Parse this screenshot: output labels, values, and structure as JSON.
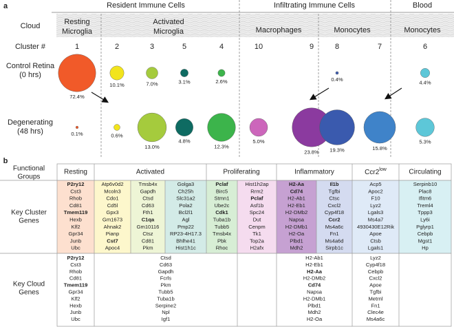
{
  "panel_a": {
    "label": "a",
    "groups": [
      "Resident Immune Cells",
      "Infiltrating Immune Cells",
      "Blood"
    ],
    "row_labels": {
      "cloud": "Cloud",
      "cluster": "Cluster #",
      "control": [
        "Control Retina",
        "(0 hrs)"
      ],
      "degenerating": [
        "Degenerating",
        "(48 hrs)"
      ]
    },
    "subgroups": [
      [
        "Resting",
        "Microglia"
      ],
      [
        "Activated",
        "Microglia"
      ],
      [
        "Macrophages"
      ],
      [
        "Monocytes"
      ],
      [
        "Monocytes"
      ]
    ],
    "clusters": [
      "1",
      "2",
      "3",
      "5",
      "4",
      "10",
      "9",
      "8",
      "7",
      "6"
    ],
    "colors": [
      "#f15a29",
      "#f2e41c",
      "#a5cb3d",
      "#0e6b62",
      "#3cb44b",
      "#cc66bb",
      "#8b3a9f",
      "#3a5aae",
      "#3f83c9",
      "#5dc7d8"
    ],
    "control": {
      "values": [
        72.4,
        10.1,
        7.0,
        3.1,
        2.6,
        null,
        null,
        0.4,
        null,
        4.4
      ],
      "value_labels": [
        "72.4%",
        "10.1%",
        "7.0%",
        "3.1%",
        "2.6%",
        null,
        null,
        "0.4%",
        null,
        "4.4%"
      ]
    },
    "degenerating": {
      "values": [
        0.1,
        0.6,
        13.0,
        4.8,
        12.3,
        5.0,
        23.8,
        19.3,
        15.8,
        5.3
      ],
      "value_labels": [
        "0.1%",
        "0.6%",
        "13.0%",
        "4.8%",
        "12.3%",
        "5.0%",
        "23.8%",
        "19.3%",
        "15.8%",
        "5.3%"
      ]
    }
  },
  "panel_b": {
    "label": "b",
    "row_labels": [
      [
        "Functional",
        "Groups"
      ],
      [
        "Key Cluster",
        "Genes"
      ],
      [
        "Key Cloud",
        "Genes"
      ]
    ],
    "groups": [
      "Resting",
      "Activated",
      "Proliferating",
      "Inflammatory",
      {
        "text": "Ccr2",
        "sup": "low"
      },
      "Circulating"
    ],
    "column_colors": [
      "#fde0cf",
      "#fdf7cc",
      "#eef5d6",
      "#d3ebe7",
      "#d7eed5",
      "#f5dcef",
      "#c6a1d2",
      "#d4dbf0",
      "#dfeaf7",
      "#d8f0f3"
    ],
    "cluster_genes": [
      [
        {
          "text": "P2ry12",
          "bold": true
        },
        "Cst3",
        "Rhob",
        "Cd81",
        {
          "text": "Tmem119",
          "bold": true
        },
        "Hexb",
        "Klf2",
        "Gpr34",
        "Junb",
        "Ubc"
      ],
      [
        "Atp6v0d2",
        "Mcoln3",
        "Cdo1",
        "Cd5l",
        "Gpx3",
        "Gm1673",
        "Ahnak2",
        "Pianp",
        {
          "text": "Cst7",
          "bold": true
        },
        "Apoc4"
      ],
      [
        "Tmsb4x",
        "Gapdh",
        "Ctsd",
        "Cd63",
        "Fth1",
        {
          "text": "C1qa",
          "bold": true
        },
        "Gm10116",
        "Ctsz",
        "Cd81",
        "Pkm"
      ],
      [
        "Golga3",
        "Ch25h",
        "Slc31a2",
        "Pola2",
        "Bcl2l1",
        "Agl",
        "Pmp22",
        "RP23-4H17.3",
        "Bhlhe41",
        "Hist1h1c"
      ],
      [
        {
          "text": "Pclaf",
          "bold": true
        },
        "Birc5",
        "Stmn1",
        "Ube2c",
        {
          "text": "Cdk1",
          "bold": true
        },
        "Tuba1b",
        "Tubb5",
        "Tmsb4x",
        "Pbk",
        "Rhoc"
      ],
      [
        "Hist1h2ap",
        "Rrm2",
        {
          "text": "Pclaf",
          "bold": true
        },
        "Asf1b",
        "Spc24",
        "Dut",
        "Cenpm",
        "Tk1",
        "Top2a",
        "H2afx"
      ],
      [
        {
          "text": "H2-Aa",
          "bold": true
        },
        {
          "text": "Cd74",
          "bold": true
        },
        "H2-Ab1",
        "H2-Eb1",
        "H2-DMb2",
        "Napsa",
        "H2-DMb1",
        "H2-Oa",
        "Plbd1",
        "Mdh2"
      ],
      [
        {
          "text": "Il1b",
          "bold": true
        },
        "Tgfbi",
        "Ctsc",
        "Cxcl2",
        "Cyp4f18",
        {
          "text": "Ccr2",
          "bold": true
        },
        "Ms4a6c",
        "Fn1",
        "Ms4a6d",
        "Sirpb1c"
      ],
      [
        "Acp5",
        "Apoc2",
        "F10",
        "Lyz2",
        "Lgals3",
        "Ms4a7",
        "4930430E12Rik",
        "Apoe",
        "Ctsb",
        "Lgals1"
      ],
      [
        "Serpinb10",
        "Plac8",
        "Ifitm6",
        "Treml4",
        "Tppp3",
        "Ly6i",
        "Pglyrp1",
        "Cebpb",
        "Mgst1",
        "Hp"
      ]
    ],
    "cloud_genes": [
      [
        {
          "text": "P2ry12",
          "bold": true
        },
        "Cst3",
        "Rhob",
        "Cd81",
        {
          "text": "Tmem119",
          "bold": true
        },
        "Gpr34",
        "Klf2",
        "Hexb",
        "Junb",
        "Ubc"
      ],
      [
        "Ctsd",
        "Cd63",
        "Gapdh",
        "Fcrls",
        "Pkm",
        "Tubb5",
        "Tuba1b",
        "Serpine2",
        "Npl",
        "Igf1"
      ],
      [
        "H2-Ab1",
        "H2-Eb1",
        {
          "text": "H2-Aa",
          "bold": true
        },
        "H2-DMb2",
        {
          "text": "Cd74",
          "bold": true
        },
        "Napsa",
        "H2-DMb1",
        "Plbd1",
        "Mdh2",
        "H2-Oa"
      ],
      [
        "Lyz2",
        "Cyp4f18",
        "Cebpb",
        "Cxcl2",
        "Apoe",
        "Tgfbi",
        "Metrnl",
        "Fn1",
        "Clec4e",
        "Ms4a6c"
      ]
    ]
  }
}
